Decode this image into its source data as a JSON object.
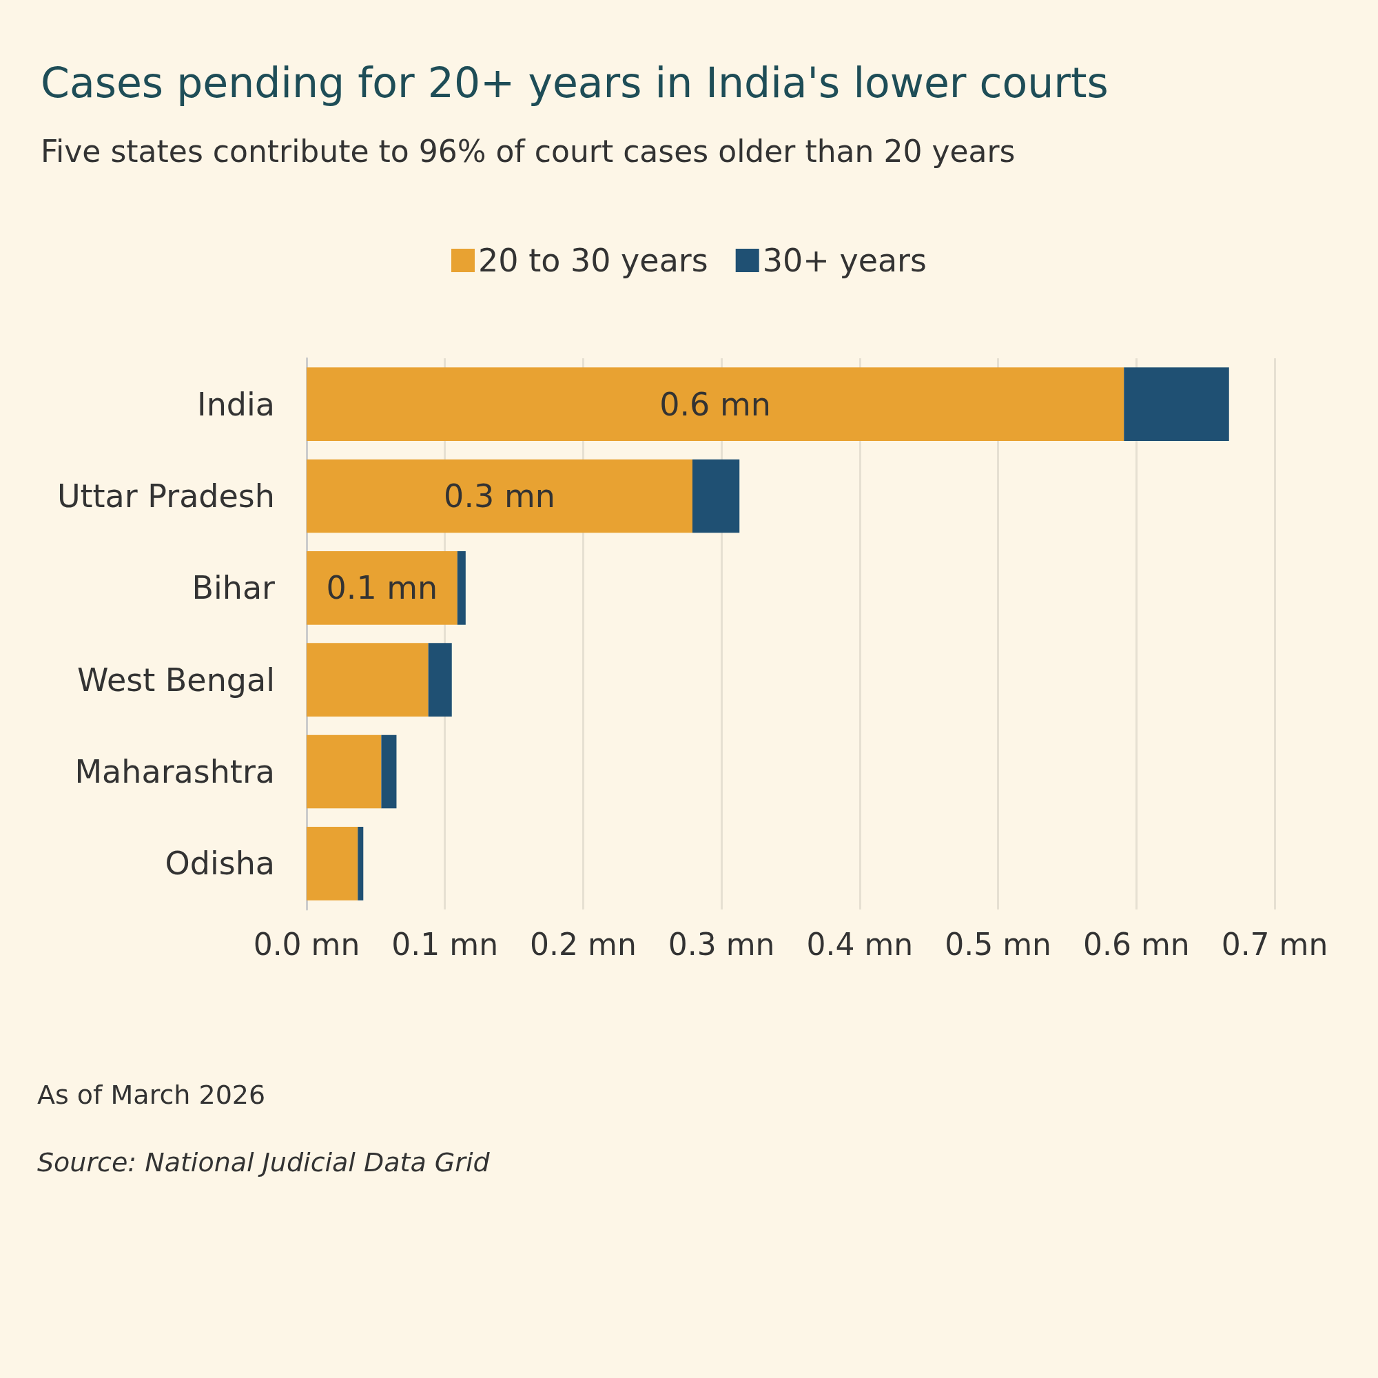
{
  "chart_data": {
    "type": "bar",
    "orientation": "horizontal",
    "stacked": true,
    "title": "Cases pending for 20+ years in India's lower courts",
    "subtitle": "Five states contribute to 96% of court cases older than 20 years",
    "categories": [
      "India",
      "Uttar Pradesh",
      "Bihar",
      "West Bengal",
      "Maharashtra",
      "Odisha"
    ],
    "series": [
      {
        "name": "20 to 30 years",
        "color": "#e8a232",
        "values": [
          0.591,
          0.279,
          0.109,
          0.088,
          0.054,
          0.037
        ],
        "value_labels": [
          "0.6 mn",
          "0.3 mn",
          "0.1 mn",
          null,
          null,
          null
        ]
      },
      {
        "name": "30+ years",
        "color": "#1f5073",
        "values": [
          0.076,
          0.034,
          0.006,
          0.017,
          0.011,
          0.004
        ]
      }
    ],
    "xlim": [
      0,
      0.7
    ],
    "xticks": [
      {
        "value": 0,
        "label": "0.0 mn"
      },
      {
        "value": 0.1,
        "label": "0.1 mn"
      },
      {
        "value": 0.2,
        "label": "0.2 mn"
      },
      {
        "value": 0.3,
        "label": "0.3 mn"
      },
      {
        "value": 0.4,
        "label": "0.4 mn"
      },
      {
        "value": 0.5,
        "label": "0.5 mn"
      },
      {
        "value": 0.6,
        "label": "0.6 mn"
      },
      {
        "value": 0.7,
        "label": "0.7 mn"
      }
    ],
    "grid": "x",
    "legend": "top",
    "annotations": [
      "As of March 2026",
      "Source: National Judicial Data Grid"
    ]
  }
}
